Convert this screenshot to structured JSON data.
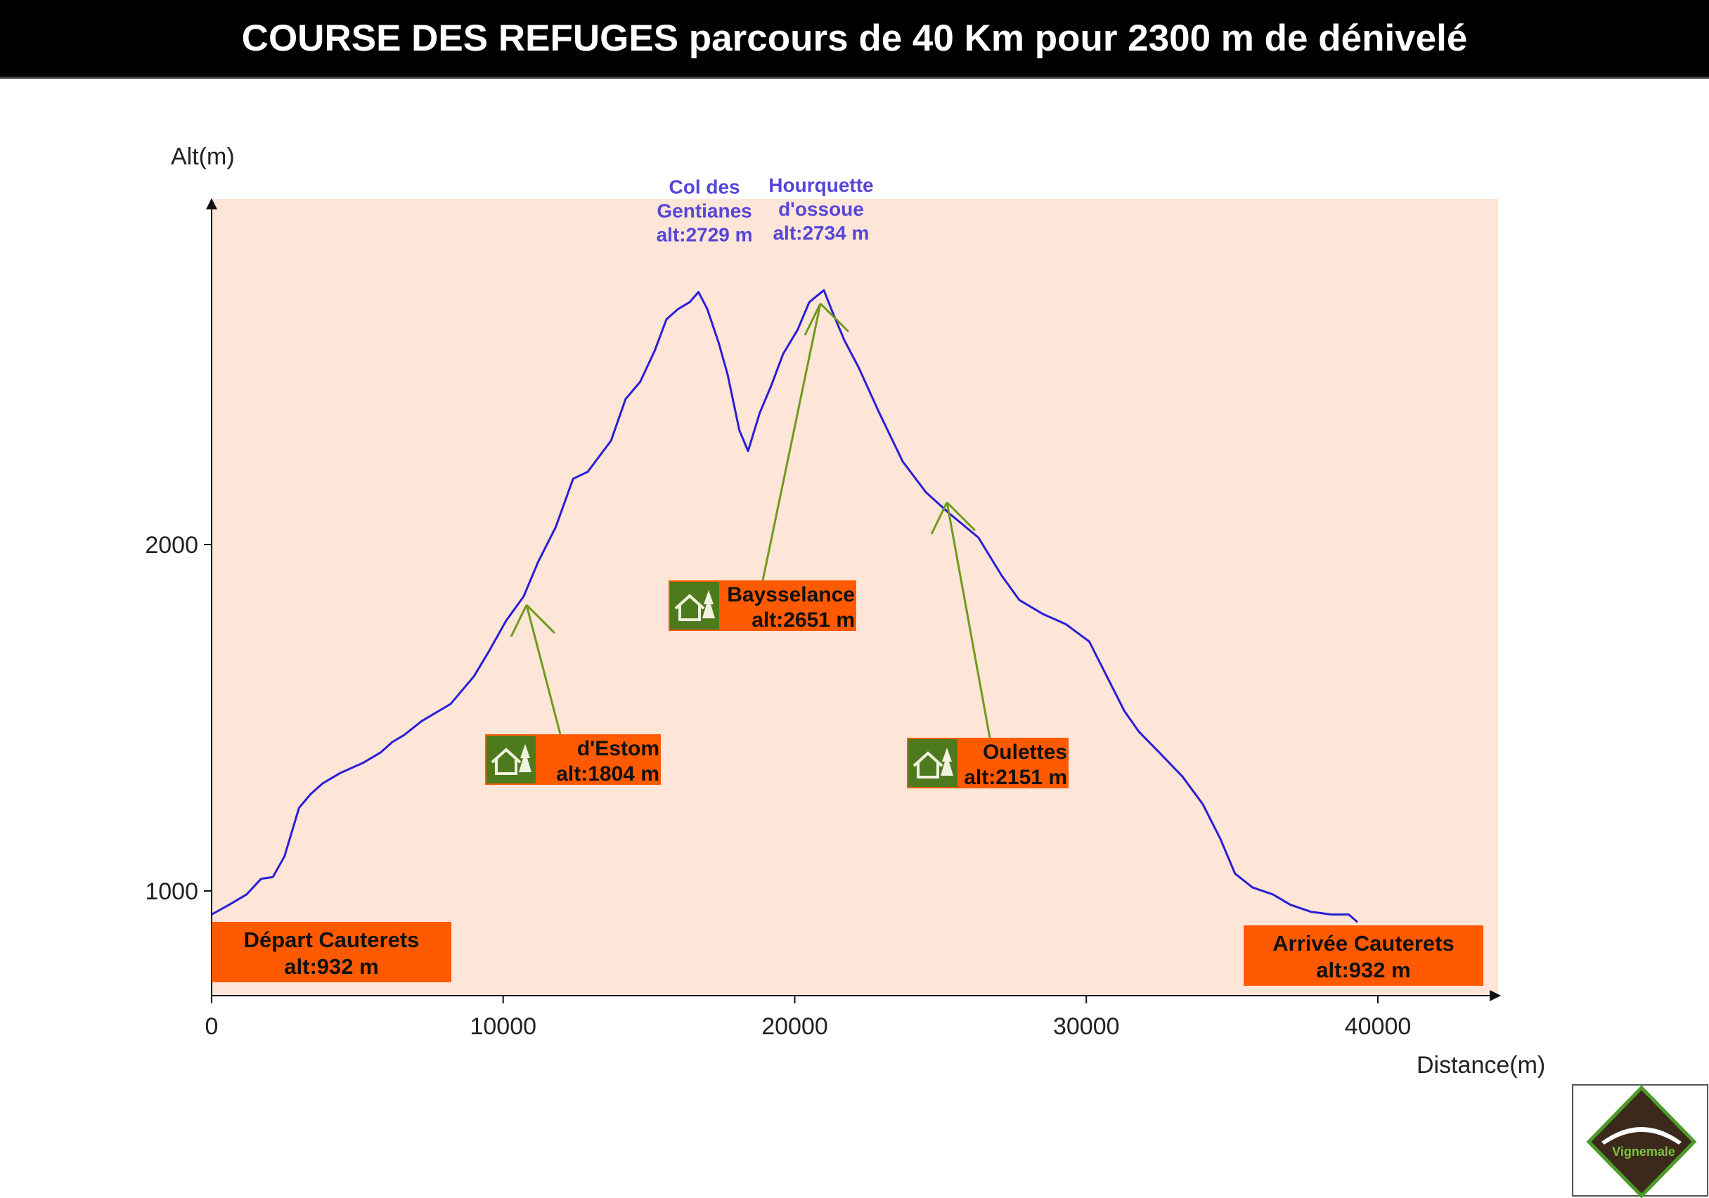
{
  "header": {
    "title_bold": "COURSE DES REFUGES",
    "title_rest": " parcours de 40 Km pour 2300 m de dénivelé"
  },
  "colors": {
    "plot_background": "#fde5d8",
    "profile_line": "#2a1fd6",
    "summit_text": "#5646d8",
    "label_box": "#ff5a00",
    "refuge_icon_bg": "#4e7a1e",
    "pointer_line": "#6f9a1a"
  },
  "chart_data": {
    "type": "line",
    "title": "COURSE DES REFUGES parcours de 40 Km pour 2300 m de dénivelé",
    "xlabel": "Distance(m)",
    "ylabel": "Alt(m)",
    "xlim": [
      0,
      44000
    ],
    "ylim": [
      700,
      2900
    ],
    "x_ticks": [
      0,
      10000,
      20000,
      30000,
      40000
    ],
    "y_ticks": [
      1000,
      2000
    ],
    "grid": false,
    "series": [
      {
        "x": [
          0,
          600,
          1200,
          1700,
          2100,
          2500,
          3000,
          3400,
          3800,
          4400,
          5200,
          5800,
          6200,
          6600,
          7200,
          8200,
          9000,
          9500,
          10100,
          10700,
          11200,
          11800,
          12400,
          12900,
          13700,
          14200,
          14700,
          15200,
          15600,
          16000,
          16400,
          16700,
          17000,
          17400,
          17700,
          18100,
          18400,
          18800,
          19200,
          19600,
          20100,
          20500,
          21000,
          21300,
          21700,
          22200,
          22900,
          23700,
          24500,
          25300,
          26300,
          27100,
          27700,
          28500,
          29300,
          30100,
          30700,
          31300,
          31800,
          32500,
          33300,
          34000,
          34600,
          35100,
          35700,
          36400,
          37000,
          37700,
          38400,
          39000,
          39300
        ],
        "y": [
          932,
          960,
          990,
          1035,
          1040,
          1100,
          1240,
          1280,
          1310,
          1340,
          1370,
          1400,
          1430,
          1450,
          1490,
          1540,
          1620,
          1690,
          1780,
          1850,
          1950,
          2050,
          2190,
          2210,
          2300,
          2420,
          2470,
          2560,
          2650,
          2680,
          2700,
          2729,
          2680,
          2580,
          2490,
          2330,
          2270,
          2380,
          2460,
          2550,
          2620,
          2700,
          2734,
          2670,
          2590,
          2510,
          2380,
          2240,
          2151,
          2090,
          2020,
          1910,
          1840,
          1800,
          1770,
          1720,
          1620,
          1520,
          1460,
          1400,
          1330,
          1250,
          1150,
          1050,
          1010,
          990,
          960,
          940,
          932,
          932,
          910
        ]
      }
    ],
    "annotations": [
      {
        "kind": "summit",
        "x": 17000,
        "alt": 2729,
        "lines": [
          "Col des",
          "Gentianes",
          "alt:2729 m"
        ]
      },
      {
        "kind": "summit",
        "x": 21000,
        "alt": 2734,
        "lines": [
          "Hourquette",
          "d'ossoue",
          "alt:2734 m"
        ]
      },
      {
        "kind": "refuge",
        "x": 11000,
        "alt": 1804,
        "name": "d'Estom",
        "alt_label": "alt:1804 m"
      },
      {
        "kind": "refuge",
        "x": 20800,
        "alt": 2651,
        "name": "Baysselance",
        "alt_label": "alt:2651 m"
      },
      {
        "kind": "refuge",
        "x": 25200,
        "alt": 2151,
        "name": "Oulettes",
        "alt_label": "alt:2151 m"
      },
      {
        "kind": "endpoint",
        "name": "Départ Cauterets",
        "alt_label": "alt:932 m"
      },
      {
        "kind": "endpoint",
        "name": "Arrivée Cauterets",
        "alt_label": "alt:932 m"
      }
    ]
  },
  "logo": {
    "text": "Vignemale",
    "icon": "trail-runner-logo-icon"
  }
}
